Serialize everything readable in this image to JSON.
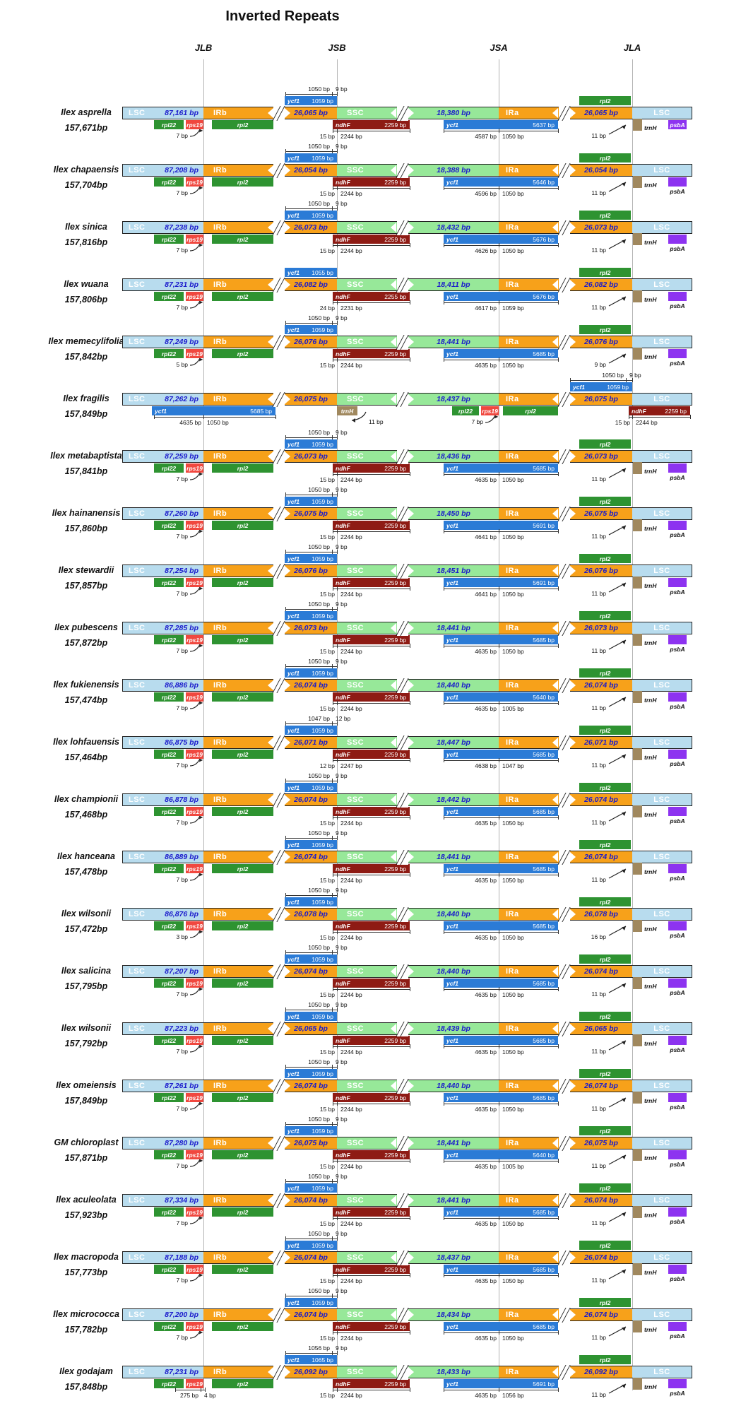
{
  "title": "Inverted Repeats",
  "junctions": [
    "JLB",
    "JSB",
    "JSA",
    "JLA"
  ],
  "region_labels": {
    "lsc": "LSC",
    "irb": "IRb",
    "ssc": "SSC",
    "ira": "IRa"
  },
  "gene_labels": {
    "ycf1": "ycf1",
    "rpl22": "rpl22",
    "rps19": "rps19",
    "rpl2": "rpl2",
    "ndhf": "ndhF",
    "trnh": "trnH",
    "psba": "psbA"
  },
  "colors": {
    "lsc": "#b8dcee",
    "ir": "#f7a11a",
    "ssc": "#97e899",
    "ycf1": "#2b7bd6",
    "green_gene": "#2e9331",
    "rps19": "#f0483f",
    "ndhf": "#8e1b14",
    "trnh": "#a0885e",
    "psba": "#8d33f0",
    "size_text": "#1a1acc"
  },
  "rows": [
    {
      "name": "Ilex asprella",
      "total": "157,671bp",
      "lsc": "87,161 bp",
      "ir": "26,065 bp",
      "ssc": "18,380 bp",
      "ycf1_top": "1059 bp",
      "top_ruler": [
        "1050 bp",
        "9 bp"
      ],
      "ndhf": "2259 bp",
      "ndhf_ruler": [
        "15 bp",
        "2244 bp"
      ],
      "ycf1_bot": "5637 bp",
      "ycf1_ruler": [
        "4587 bp",
        "1050 bp"
      ],
      "left_note": "7 bp",
      "right_note": "11 bp",
      "psba_inside": true
    },
    {
      "name": "Ilex chapaensis",
      "total": "157,704bp",
      "lsc": "87,208 bp",
      "ir": "26,054 bp",
      "ssc": "18,388 bp",
      "ycf1_top": "1059 bp",
      "top_ruler": [
        "1050 bp",
        "9 bp"
      ],
      "ndhf": "2259 bp",
      "ndhf_ruler": [
        "15 bp",
        "2244 bp"
      ],
      "ycf1_bot": "5646 bp",
      "ycf1_ruler": [
        "4596 bp",
        "1050 bp"
      ],
      "left_note": "7 bp",
      "right_note": "11 bp"
    },
    {
      "name": "Ilex sinica",
      "total": "157,816bp",
      "lsc": "87,238 bp",
      "ir": "26,073 bp",
      "ssc": "18,432 bp",
      "ycf1_top": "1059 bp",
      "top_ruler": [
        "1050 bp",
        "9 bp"
      ],
      "ndhf": "2259 bp",
      "ndhf_ruler": [
        "15 bp",
        "2244 bp"
      ],
      "ycf1_bot": "5676 bp",
      "ycf1_ruler": [
        "4626 bp",
        "1050 bp"
      ],
      "left_note": "7 bp",
      "right_note": "11 bp"
    },
    {
      "name": "Ilex wuana",
      "total": "157,806bp",
      "lsc": "87,231 bp",
      "ir": "26,082 bp",
      "ssc": "18,411 bp",
      "ycf1_top": "1055 bp",
      "top_ruler": null,
      "ndhf": "2255 bp",
      "ndhf_ruler": [
        "24 bp",
        "2231 bp"
      ],
      "ycf1_bot": "5676 bp",
      "ycf1_ruler": [
        "4617 bp",
        "1059 bp"
      ],
      "left_note": "7 bp",
      "right_note": "11 bp"
    },
    {
      "name": "Ilex memecylifolia",
      "total": "157,842bp",
      "lsc": "87,249 bp",
      "ir": "26,076 bp",
      "ssc": "18,441 bp",
      "ycf1_top": "1059 bp",
      "top_ruler": [
        "1050 bp",
        "9 bp"
      ],
      "ndhf": "2259 bp",
      "ndhf_ruler": [
        "15 bp",
        "2244 bp"
      ],
      "ycf1_bot": "5685 bp",
      "ycf1_ruler": [
        "4635 bp",
        "1050 bp"
      ],
      "left_note": "5 bp",
      "right_note": "9 bp"
    },
    {
      "name": "Ilex fragilis",
      "total": "157,849bp",
      "lsc": "87,262 bp",
      "ir": "26,075 bp",
      "ssc": "18,437 bp",
      "ycf1_top": "1059 bp",
      "top_ruler": [
        "1050 bp",
        "9 bp"
      ],
      "ndhf": "2259 bp",
      "ndhf_ruler": [
        "15 bp",
        "2244 bp"
      ],
      "ycf1_bot": "5685 bp",
      "ycf1_ruler": [
        "4635 bp",
        "1050 bp"
      ],
      "left_note": "7 bp",
      "right_note": "11 bp",
      "mirrored": true
    },
    {
      "name": "Ilex metabaptista",
      "total": "157,841bp",
      "lsc": "87,259 bp",
      "ir": "26,073 bp",
      "ssc": "18,436 bp",
      "ycf1_top": "1059 bp",
      "top_ruler": [
        "1050 bp",
        "9 bp"
      ],
      "ndhf": "2259 bp",
      "ndhf_ruler": [
        "15 bp",
        "2244 bp"
      ],
      "ycf1_bot": "5685 bp",
      "ycf1_ruler": [
        "4635 bp",
        "1050 bp"
      ],
      "left_note": "7 bp",
      "right_note": "11 bp"
    },
    {
      "name": "Ilex hainanensis",
      "total": "157,860bp",
      "lsc": "87,260 bp",
      "ir": "26,075 bp",
      "ssc": "18,450 bp",
      "ycf1_top": "1059 bp",
      "top_ruler": [
        "1050 bp",
        "9 bp"
      ],
      "ndhf": "2259 bp",
      "ndhf_ruler": [
        "15 bp",
        "2244 bp"
      ],
      "ycf1_bot": "5691 bp",
      "ycf1_ruler": [
        "4641 bp",
        "1050 bp"
      ],
      "left_note": "7 bp",
      "right_note": "11 bp"
    },
    {
      "name": "Ilex stewardii",
      "total": "157,857bp",
      "lsc": "87,254 bp",
      "ir": "26,076 bp",
      "ssc": "18,451 bp",
      "ycf1_top": "1059 bp",
      "top_ruler": [
        "1050 bp",
        "9 bp"
      ],
      "ndhf": "2259 bp",
      "ndhf_ruler": [
        "15 bp",
        "2244 bp"
      ],
      "ycf1_bot": "5691 bp",
      "ycf1_ruler": [
        "4641 bp",
        "1050 bp"
      ],
      "left_note": "7 bp",
      "right_note": "11 bp"
    },
    {
      "name": "Ilex pubescens",
      "total": "157,872bp",
      "lsc": "87,285 bp",
      "ir": "26,073 bp",
      "ssc": "18,441 bp",
      "ycf1_top": "1059 bp",
      "top_ruler": [
        "1050 bp",
        "9 bp"
      ],
      "ndhf": "2259 bp",
      "ndhf_ruler": [
        "15 bp",
        "2244 bp"
      ],
      "ycf1_bot": "5685 bp",
      "ycf1_ruler": [
        "4635 bp",
        "1050 bp"
      ],
      "left_note": "7 bp",
      "right_note": "11 bp"
    },
    {
      "name": "Ilex fukienensis",
      "total": "157,474bp",
      "lsc": "86,886 bp",
      "ir": "26,074 bp",
      "ssc": "18,440 bp",
      "ycf1_top": "1059 bp",
      "top_ruler": [
        "1050 bp",
        "9 bp"
      ],
      "ndhf": "2259 bp",
      "ndhf_ruler": [
        "15 bp",
        "2244 bp"
      ],
      "ycf1_bot": "5640 bp",
      "ycf1_ruler": [
        "4635 bp",
        "1005 bp"
      ],
      "left_note": "7 bp",
      "right_note": "11 bp"
    },
    {
      "name": "Ilex lohfauensis",
      "total": "157,464bp",
      "lsc": "86,875 bp",
      "ir": "26,071 bp",
      "ssc": "18,447 bp",
      "ycf1_top": "1059 bp",
      "top_ruler": [
        "1047 bp",
        "12 bp"
      ],
      "ndhf": "2259 bp",
      "ndhf_ruler": [
        "12 bp",
        "2247 bp"
      ],
      "ycf1_bot": "5685 bp",
      "ycf1_ruler": [
        "4638 bp",
        "1047 bp"
      ],
      "left_note": "7 bp",
      "right_note": "11 bp"
    },
    {
      "name": "Ilex championii",
      "total": "157,468bp",
      "lsc": "86,878 bp",
      "ir": "26,074 bp",
      "ssc": "18,442 bp",
      "ycf1_top": "1059 bp",
      "top_ruler": [
        "1050 bp",
        "9 bp"
      ],
      "ndhf": "2259 bp",
      "ndhf_ruler": [
        "15 bp",
        "2244 bp"
      ],
      "ycf1_bot": "5685 bp",
      "ycf1_ruler": [
        "4635 bp",
        "1050 bp"
      ],
      "left_note": "7 bp",
      "right_note": "11 bp"
    },
    {
      "name": "Ilex hanceana",
      "total": "157,478bp",
      "lsc": "86,889 bp",
      "ir": "26,074 bp",
      "ssc": "18,441 bp",
      "ycf1_top": "1059 bp",
      "top_ruler": [
        "1050 bp",
        "9 bp"
      ],
      "ndhf": "2259 bp",
      "ndhf_ruler": [
        "15 bp",
        "2244 bp"
      ],
      "ycf1_bot": "5685 bp",
      "ycf1_ruler": [
        "4635 bp",
        "1050 bp"
      ],
      "left_note": "7 bp",
      "right_note": "11 bp"
    },
    {
      "name": "Ilex wilsonii",
      "total": "157,472bp",
      "lsc": "86,876 bp",
      "ir": "26,078 bp",
      "ssc": "18,440 bp",
      "ycf1_top": "1059 bp",
      "top_ruler": [
        "1050 bp",
        "9 bp"
      ],
      "ndhf": "2259 bp",
      "ndhf_ruler": [
        "15 bp",
        "2244 bp"
      ],
      "ycf1_bot": "5685 bp",
      "ycf1_ruler": [
        "4635 bp",
        "1050 bp"
      ],
      "left_note": "3 bp",
      "right_note": "16 bp"
    },
    {
      "name": "Ilex salicina",
      "total": "157,795bp",
      "lsc": "87,207 bp",
      "ir": "26,074 bp",
      "ssc": "18,440 bp",
      "ycf1_top": "1059 bp",
      "top_ruler": [
        "1050 bp",
        "9 bp"
      ],
      "ndhf": "2259 bp",
      "ndhf_ruler": [
        "15 bp",
        "2244 bp"
      ],
      "ycf1_bot": "5685 bp",
      "ycf1_ruler": [
        "4635 bp",
        "1050 bp"
      ],
      "left_note": "7 bp",
      "right_note": "11 bp"
    },
    {
      "name": "Ilex wilsonii",
      "total": "157,792bp",
      "lsc": "87,223 bp",
      "ir": "26,065 bp",
      "ssc": "18,439 bp",
      "ycf1_top": "1059 bp",
      "top_ruler": [
        "1050 bp",
        "9 bp"
      ],
      "ndhf": "2259 bp",
      "ndhf_ruler": [
        "15 bp",
        "2244 bp"
      ],
      "ycf1_bot": "5685 bp",
      "ycf1_ruler": [
        "4635 bp",
        "1050 bp"
      ],
      "left_note": "7 bp",
      "right_note": "11 bp"
    },
    {
      "name": "Ilex omeiensis",
      "total": "157,849bp",
      "lsc": "87,261 bp",
      "ir": "26,074 bp",
      "ssc": "18,440 bp",
      "ycf1_top": "1059 bp",
      "top_ruler": [
        "1050 bp",
        "9 bp"
      ],
      "ndhf": "2259 bp",
      "ndhf_ruler": [
        "15 bp",
        "2244 bp"
      ],
      "ycf1_bot": "5685 bp",
      "ycf1_ruler": [
        "4635 bp",
        "1050 bp"
      ],
      "left_note": "7 bp",
      "right_note": "11 bp"
    },
    {
      "name": "GM chloroplast",
      "total": "157,871bp",
      "lsc": "87,280 bp",
      "ir": "26,075 bp",
      "ssc": "18,441 bp",
      "ycf1_top": "1059 bp",
      "top_ruler": [
        "1050 bp",
        "9 bp"
      ],
      "ndhf": "2259 bp",
      "ndhf_ruler": [
        "15 bp",
        "2244 bp"
      ],
      "ycf1_bot": "5640 bp",
      "ycf1_ruler": [
        "4635 bp",
        "1005 bp"
      ],
      "left_note": "7 bp",
      "right_note": "11 bp"
    },
    {
      "name": "Ilex aculeolata",
      "total": "157,923bp",
      "lsc": "87,334 bp",
      "ir": "26,074 bp",
      "ssc": "18,441 bp",
      "ycf1_top": "1059 bp",
      "top_ruler": [
        "1050 bp",
        "9 bp"
      ],
      "ndhf": "2259 bp",
      "ndhf_ruler": [
        "15 bp",
        "2244 bp"
      ],
      "ycf1_bot": "5685 bp",
      "ycf1_ruler": [
        "4635 bp",
        "1050 bp"
      ],
      "left_note": "7 bp",
      "right_note": "11 bp"
    },
    {
      "name": "Ilex macropoda",
      "total": "157,773bp",
      "lsc": "87,188 bp",
      "ir": "26,074 bp",
      "ssc": "18,437 bp",
      "ycf1_top": "1059 bp",
      "top_ruler": [
        "1050 bp",
        "9 bp"
      ],
      "ndhf": "2259 bp",
      "ndhf_ruler": [
        "15 bp",
        "2244 bp"
      ],
      "ycf1_bot": "5685 bp",
      "ycf1_ruler": [
        "4635 bp",
        "1050 bp"
      ],
      "left_note": "7 bp",
      "right_note": "11 bp"
    },
    {
      "name": "Ilex micrococca",
      "total": "157,782bp",
      "lsc": "87,200 bp",
      "ir": "26,074 bp",
      "ssc": "18,434 bp",
      "ycf1_top": "1059 bp",
      "top_ruler": [
        "1050 bp",
        "9 bp"
      ],
      "ndhf": "2259 bp",
      "ndhf_ruler": [
        "15 bp",
        "2244 bp"
      ],
      "ycf1_bot": "5685 bp",
      "ycf1_ruler": [
        "4635 bp",
        "1050 bp"
      ],
      "left_note": "7 bp",
      "right_note": "11 bp"
    },
    {
      "name": "Ilex godajam",
      "total": "157,848bp",
      "lsc": "87,231 bp",
      "ir": "26,092 bp",
      "ssc": "18,433 bp",
      "ycf1_top": "1065 bp",
      "top_ruler": [
        "1056 bp",
        "9 bp"
      ],
      "ndhf": "2259 bp",
      "ndhf_ruler": [
        "15 bp",
        "2244 bp"
      ],
      "ycf1_bot": "5691 bp",
      "ycf1_ruler": [
        "4635 bp",
        "1056 bp"
      ],
      "left_ruler": [
        "275 bp",
        "4 bp"
      ],
      "right_note": "11 bp"
    }
  ]
}
